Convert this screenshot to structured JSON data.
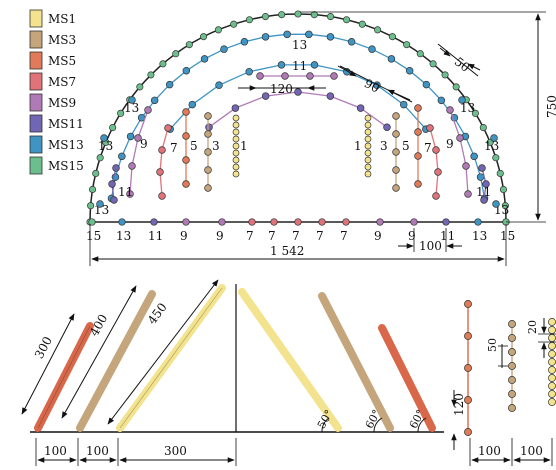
{
  "colors": {
    "MS1": "#f3e38e",
    "MS3": "#c4a57c",
    "MS5": "#e07a58",
    "MS7": "#e0727a",
    "MS9": "#b07ab6",
    "MS11": "#7166b4",
    "MS13": "#3f94c4",
    "MS15": "#6cbf8c",
    "line": "#111111"
  },
  "legend": [
    {
      "id": "MS1",
      "label": "MS1"
    },
    {
      "id": "MS3",
      "label": "MS3"
    },
    {
      "id": "MS5",
      "label": "MS5"
    },
    {
      "id": "MS7",
      "label": "MS7"
    },
    {
      "id": "MS9",
      "label": "MS9"
    },
    {
      "id": "MS11",
      "label": "MS11"
    },
    {
      "id": "MS13",
      "label": "MS13"
    },
    {
      "id": "MS15",
      "label": "MS15"
    }
  ],
  "top": {
    "arc_labels": {
      "ms13": "13",
      "ms11": "11"
    },
    "dim_spacing_50": "50",
    "dim_spacing_90": "90",
    "dim_spacing_120": "120",
    "dim_height": "750",
    "dim_width": "1 542",
    "dim_bottom_spacing": "100",
    "side_labels": {
      "l13a": "13",
      "l13b": "13",
      "l13c": "13",
      "l11": "11",
      "l9": "9",
      "l7": "7",
      "l5": "5",
      "l3": "3",
      "l1": "1",
      "r13a": "13",
      "r13b": "13",
      "r13c": "13",
      "r11": "11",
      "r9": "9",
      "r7": "7",
      "r5": "5",
      "r3": "3",
      "r1": "1"
    },
    "bottom_labels": [
      "15",
      "13",
      "11",
      "9",
      "9",
      "7",
      "7",
      "7",
      "7",
      "7",
      "9",
      "9",
      "11",
      "13",
      "15"
    ]
  },
  "bottom": {
    "len_300": "300",
    "len_400": "400",
    "len_450": "450",
    "angle_50": "50°",
    "angle_60a": "60°",
    "angle_60b": "60°",
    "dim_100a": "100",
    "dim_100b": "100",
    "dim_300": "300",
    "dim_120": "120",
    "dim_50": "50",
    "dim_20": "20",
    "dim_100c": "100",
    "dim_100d": "100"
  }
}
